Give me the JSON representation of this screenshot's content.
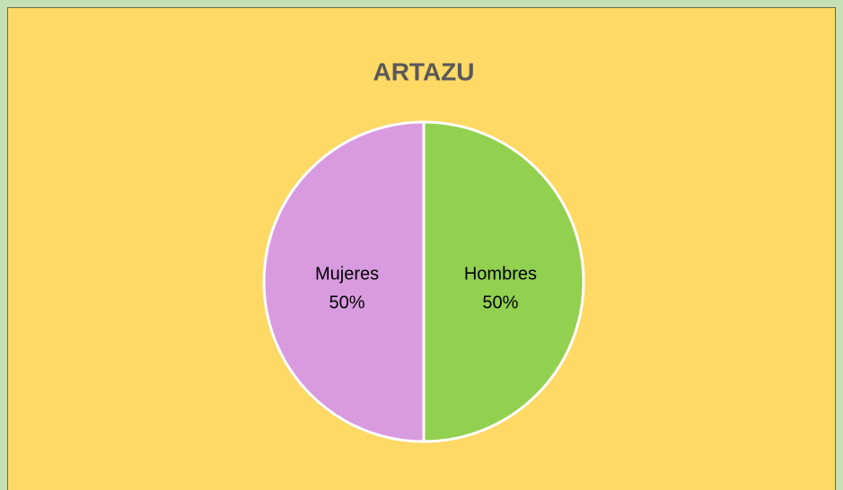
{
  "chart_data": {
    "type": "pie",
    "title": "ARTAZU",
    "categories": [
      "Hombres",
      "Mujeres"
    ],
    "values": [
      50,
      50
    ],
    "value_labels": [
      "50%",
      "50%"
    ],
    "colors": [
      "#92d050",
      "#d99be0"
    ]
  }
}
